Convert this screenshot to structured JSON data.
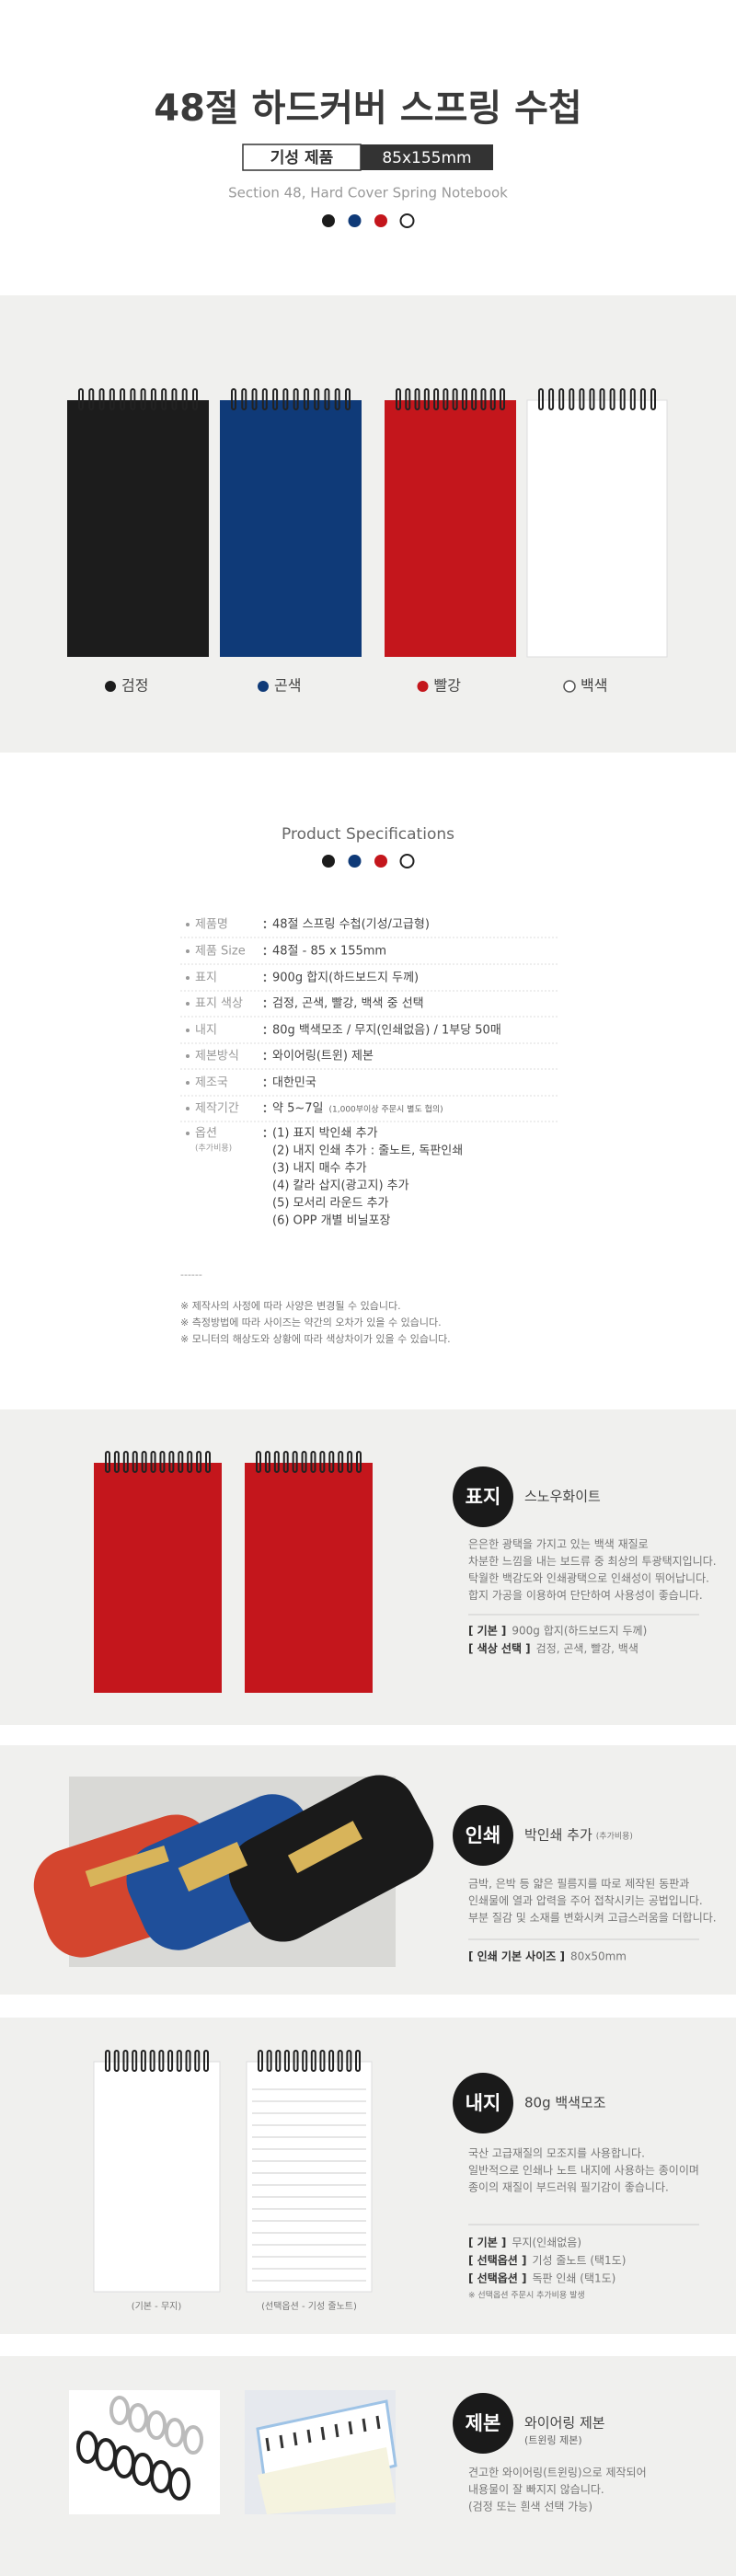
{
  "header": {
    "title": "48절 하드커버 스프링 수첩",
    "badge_label": "기성 제품",
    "badge_size": "85x155mm",
    "subtitle": "Section 48, Hard Cover Spring Notebook"
  },
  "colors": [
    {
      "name": "검정",
      "color": "#1c1c1c"
    },
    {
      "name": "곤색",
      "color": "#0f3a78"
    },
    {
      "name": "빨강",
      "color": "#c4161c"
    },
    {
      "name": "백색",
      "color": "#ffffff"
    }
  ],
  "specs": {
    "title": "Product Specifications",
    "rows": [
      {
        "label": "제품명",
        "value": "48절 스프링 수첩(기성/고급형)"
      },
      {
        "label": "제품 Size",
        "value": "48절 - 85 x 155mm"
      },
      {
        "label": "표지",
        "value": "900g 합지(하드보드지 두께)"
      },
      {
        "label": "표지 색상",
        "value": "검정, 곤색, 빨강, 백색 중 선택"
      },
      {
        "label": "내지",
        "value": "80g 백색모조 / 무지(인쇄없음) / 1부당 50매"
      },
      {
        "label": "제본방식",
        "value": "와이어링(트윈) 제본"
      },
      {
        "label": "제조국",
        "value": "대한민국"
      },
      {
        "label": "제작기간",
        "value": "약 5~7일",
        "value_note": "(1,000부이상 주문시 별도 협의)"
      }
    ],
    "options": {
      "label": "옵션",
      "sublabel": "(추가비용)",
      "lines": [
        "(1) 표지 박인쇄 추가",
        "(2) 내지 인쇄 추가 : 줄노트, 독판인쇄",
        "(3) 내지 매수 추가",
        "(4) 칼라 삽지(광고지) 추가",
        "(5) 모서리 라운드 추가",
        "(6) OPP 개별 비닐포장"
      ]
    },
    "separator": "------",
    "notes": [
      "※ 제작사의 사정에 따라 사양은 변경될 수 있습니다.",
      "※ 측정방법에 따라 사이즈는 약간의 오차가 있을 수 있습니다.",
      "※ 모니터의 해상도와 상황에 따라 색상차이가 있을 수 있습니다."
    ]
  },
  "features": [
    {
      "badge": "표지",
      "title": "스노우화이트",
      "description": [
        "은은한 광택을 가지고 있는 백색 재질로",
        "차분한 느낌을 내는 보드류 중 최상의 투광택지입니다.",
        "탁월한 백감도와 인쇄광택으로 인쇄성이 뛰어납니다.",
        "합지 가공을 이용하여 단단하여 사용성이 좋습니다."
      ],
      "specs": [
        {
          "key": "[ 기본 ]",
          "value": "900g 합지(하드보드지 두께)"
        },
        {
          "key": "[ 색상 선택 ]",
          "value": "검정, 곤색, 빨강, 백색"
        }
      ]
    },
    {
      "badge": "인쇄",
      "title": "박인쇄 추가",
      "title_note": "(추가비용)",
      "description": [
        "금박, 은박 등 얇은 필름지를 따로 제작된 동판과",
        "인쇄물에 열과 압력을 주어 접착시키는 공법입니다.",
        "부분 질감 및 소재를 변화시켜 고급스러움을 더합니다."
      ],
      "specs": [
        {
          "key": "[ 인쇄 기본 사이즈 ]",
          "value": "80x50mm"
        }
      ]
    },
    {
      "badge": "내지",
      "title": "80g 백색모조",
      "description": [
        "국산 고급재질의 모조지를 사용합니다.",
        "일반적으로 인쇄나 노트 내지에 사용하는 종이이며",
        "종이의 재질이 부드러워 필기감이 좋습니다."
      ],
      "specs": [
        {
          "key": "[ 기본 ]",
          "value": "무지(인쇄없음)"
        },
        {
          "key": "[ 선택옵션 ]",
          "value": "기성 줄노트 (택1도)"
        },
        {
          "key": "[ 선택옵션 ]",
          "value": "독판 인쇄 (택1도)"
        }
      ],
      "note": "※ 선택옵션 주문시 추가비용 발생",
      "captions": [
        "(기본 - 무지)",
        "(선택옵션 - 기성 줄노트)"
      ]
    },
    {
      "badge": "제본",
      "title": "와이어링 제본",
      "title_note": "(트윈링 제본)",
      "description": [
        "견고한 와이어링(트윈링)으로 제작되어",
        "내용물이 잘 빠지지 않습니다.",
        "(검정 또는 흰색 선택 가능)"
      ]
    }
  ]
}
